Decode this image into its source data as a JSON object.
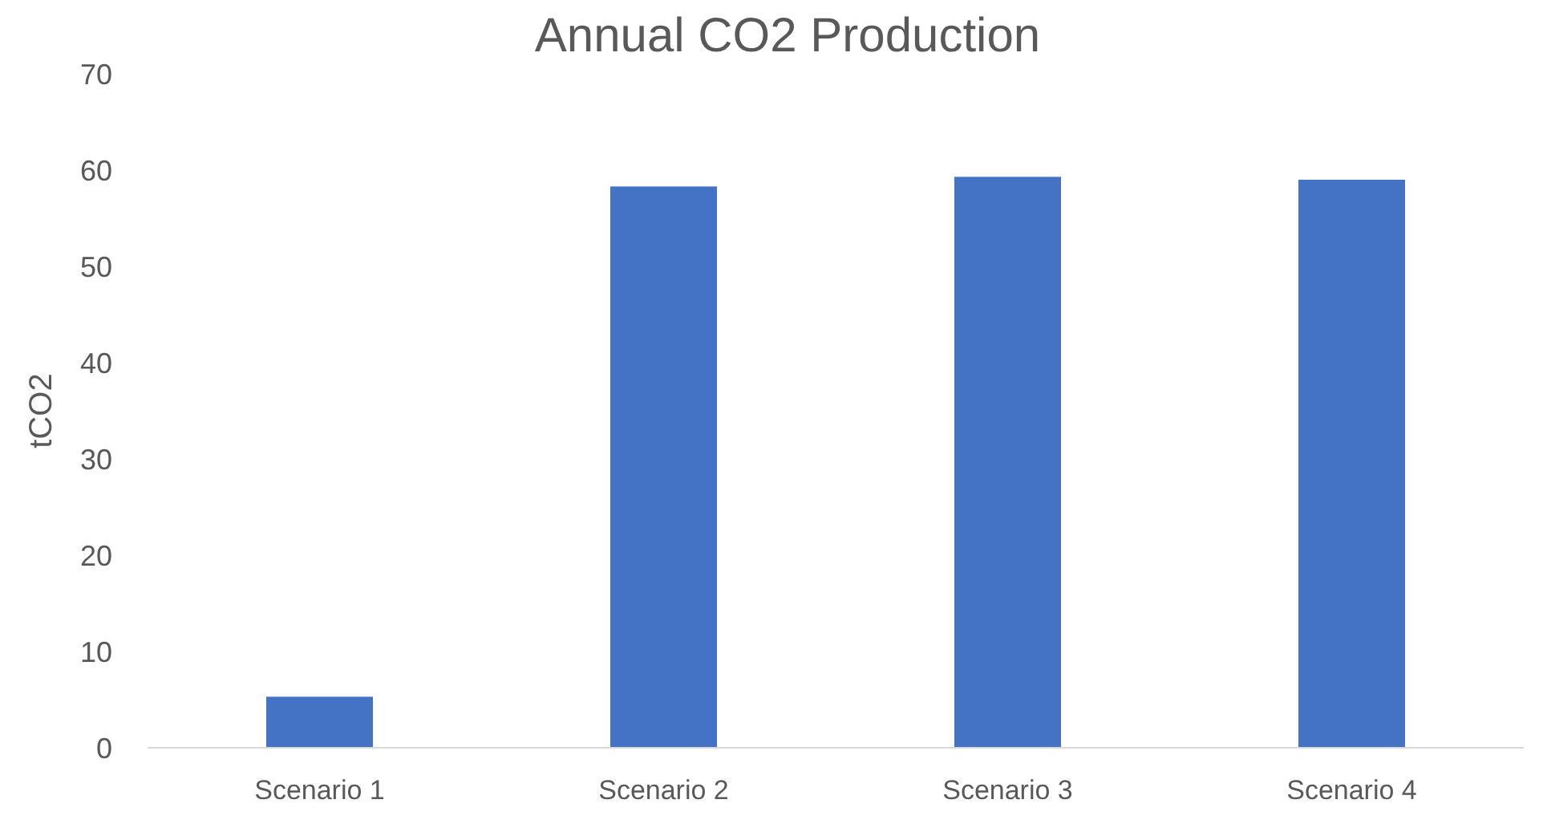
{
  "chart_data": {
    "type": "bar",
    "title": "Annual CO2 Production",
    "ylabel": "tCO2",
    "categories": [
      "Scenario 1",
      "Scenario 2",
      "Scenario 3",
      "Scenario 4"
    ],
    "values": [
      5.3,
      58.3,
      59.3,
      59
    ],
    "color": "#4472c4",
    "ylim": [
      0,
      70
    ],
    "yticks": [
      0,
      10,
      20,
      30,
      40,
      50,
      60,
      70
    ],
    "grid": false
  }
}
